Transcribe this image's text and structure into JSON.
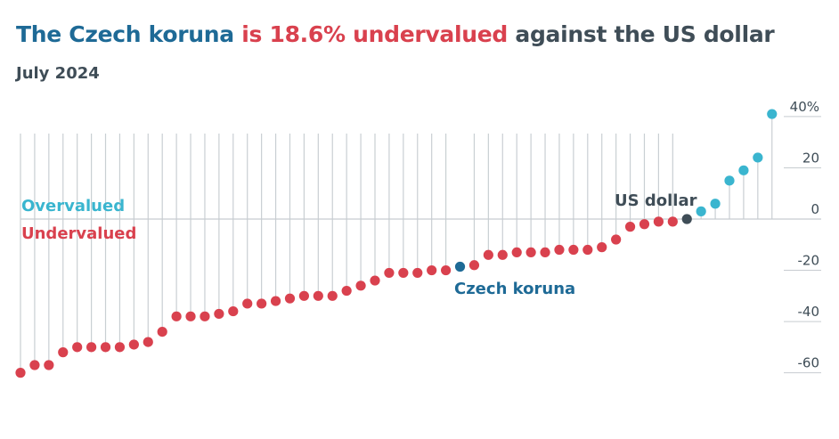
{
  "title": {
    "part1": "The Czech koruna",
    "part2": " is 18.6% undervalued",
    "part3": " against the US dollar"
  },
  "subtitle": "July 2024",
  "colors": {
    "under": "#d9414e",
    "over": "#3ab5cf",
    "highlight": "#1e6a96",
    "base": "#3f4d57",
    "stem": "#c9cfd3",
    "grid": "#c7ccd0"
  },
  "chart_data": {
    "type": "lollipop",
    "ylim": [
      -65,
      45
    ],
    "yticks": [
      {
        "value": 40,
        "label": "40%"
      },
      {
        "value": 20,
        "label": "20"
      },
      {
        "value": 0,
        "label": "0"
      },
      {
        "value": -20,
        "label": "-20"
      },
      {
        "value": -40,
        "label": "-40"
      },
      {
        "value": -60,
        "label": "-60"
      }
    ],
    "values": [
      -60,
      -57,
      -57,
      -52,
      -50,
      -50,
      -50,
      -50,
      -49,
      -48,
      -44,
      -38,
      -38,
      -38,
      -37,
      -36,
      -33,
      -33,
      -32,
      -31,
      -30,
      -30,
      -30,
      -28,
      -26,
      -24,
      -21,
      -21,
      -21,
      -20,
      -20,
      -18.6,
      -18,
      -14,
      -14,
      -13,
      -13,
      -13,
      -12,
      -12,
      -12,
      -11,
      -8,
      -3,
      -2,
      -1,
      -1,
      0,
      3,
      6,
      15,
      19,
      24,
      41
    ],
    "highlight": [
      {
        "index": 31,
        "label": "Czech koruna",
        "value": -18.6
      },
      {
        "index": 47,
        "label": "US dollar",
        "value": 0
      }
    ],
    "annotations": {
      "overvalued": "Overvalued",
      "undervalued": "Undervalued"
    }
  }
}
